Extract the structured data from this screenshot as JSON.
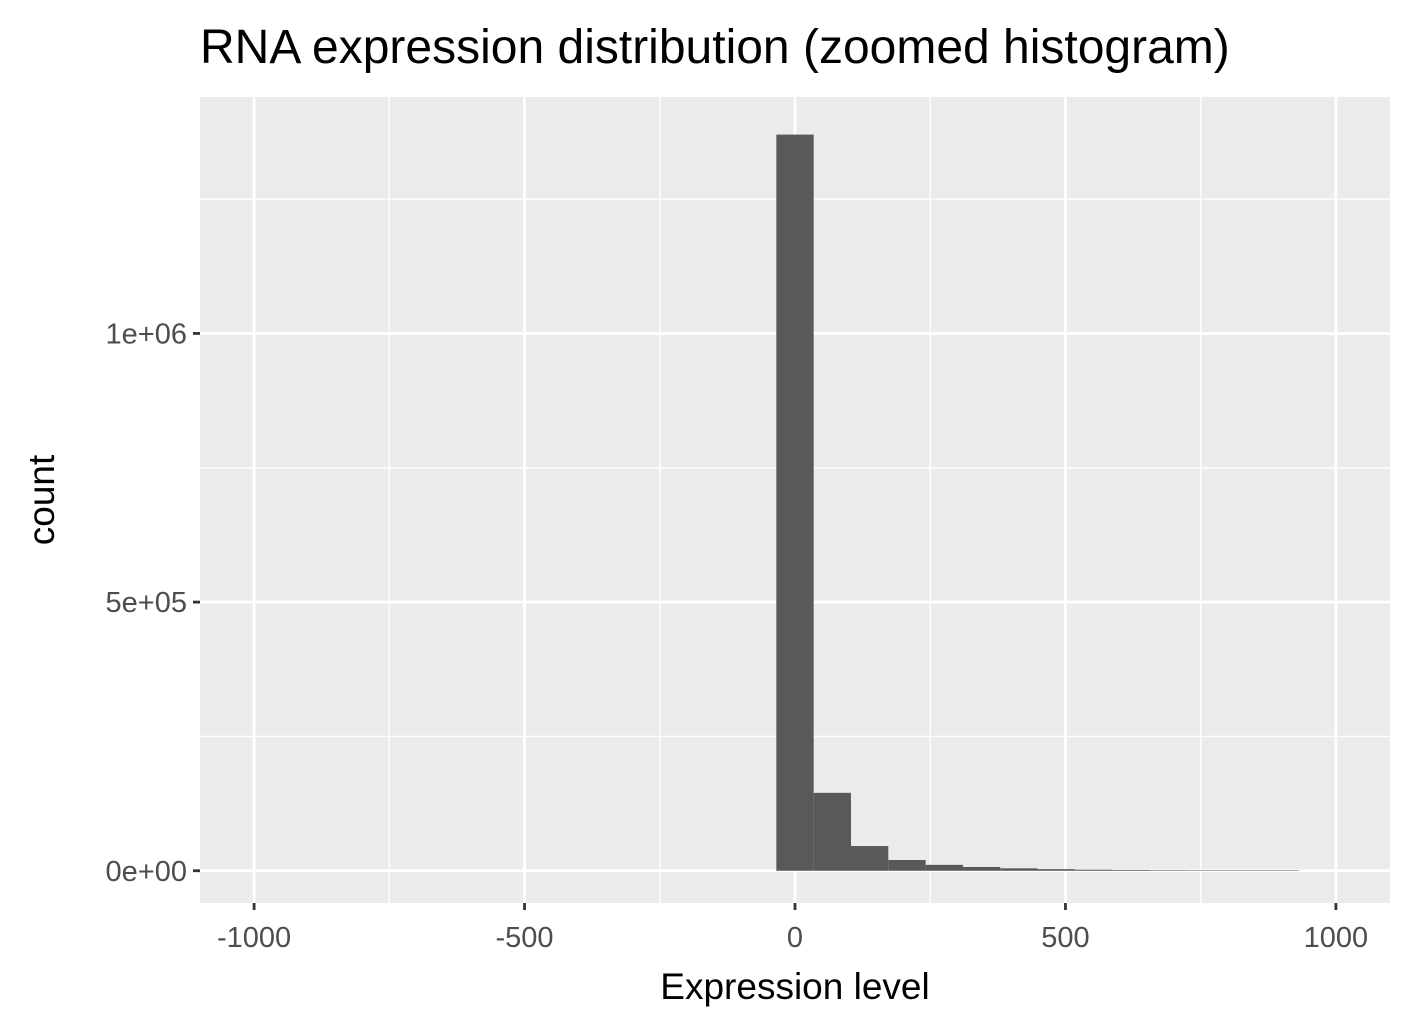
{
  "chart_data": {
    "type": "bar",
    "title": "RNA expression distribution (zoomed histogram)",
    "xlabel": "Expression level",
    "ylabel": "count",
    "xlim": [
      -1100,
      1100
    ],
    "ylim": [
      -60000,
      1440000
    ],
    "x_ticks": [
      -1000,
      -500,
      0,
      500,
      1000
    ],
    "x_tick_labels": [
      "-1000",
      "-500",
      "0",
      "500",
      "1000"
    ],
    "x_minor_ticks": [
      -750,
      -250,
      250,
      750
    ],
    "y_ticks": [
      0,
      500000,
      1000000
    ],
    "y_tick_labels": [
      "0e+00",
      "5e+05",
      "1e+06"
    ],
    "y_minor_ticks": [
      250000,
      750000,
      1250000
    ],
    "bin_width": 69,
    "bins": [
      {
        "x": 0,
        "count": 1370000
      },
      {
        "x": 69,
        "count": 145000
      },
      {
        "x": 138,
        "count": 46000
      },
      {
        "x": 207,
        "count": 20000
      },
      {
        "x": 276,
        "count": 11000
      },
      {
        "x": 345,
        "count": 7000
      },
      {
        "x": 414,
        "count": 4500
      },
      {
        "x": 483,
        "count": 3000
      },
      {
        "x": 552,
        "count": 2000
      },
      {
        "x": 621,
        "count": 1500
      },
      {
        "x": 690,
        "count": 1100
      },
      {
        "x": 759,
        "count": 900
      },
      {
        "x": 828,
        "count": 700
      },
      {
        "x": 897,
        "count": 600
      }
    ],
    "grid": true,
    "colors": {
      "panel_background": "#ebebeb",
      "grid_line": "#ffffff",
      "bar_fill": "#595959",
      "tick_mark": "#333333",
      "tick_label": "#4d4d4d"
    }
  }
}
